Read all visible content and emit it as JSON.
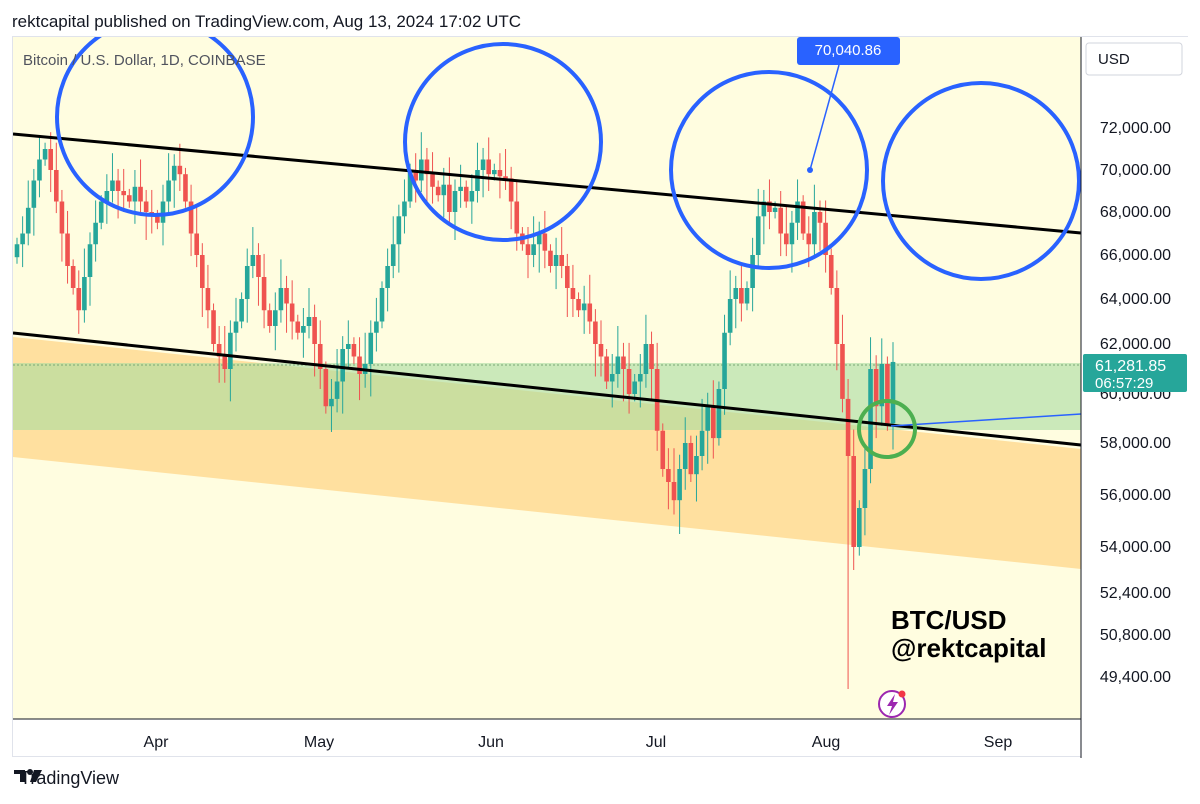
{
  "header": {
    "text": "rektcapital published on TradingView.com, Aug 13, 2024 17:02 UTC"
  },
  "symbol_label": "Bitcoin / U.S. Dollar, 1D, COINBASE",
  "currency_button": "USD",
  "watermark": {
    "line1": "BTC/USD",
    "line2": "@rektcapital"
  },
  "footer": {
    "brand": "TradingView"
  },
  "colors": {
    "up": "#26a69a",
    "down": "#ef5350",
    "circle": "#2962ff",
    "green_circle": "#4caf50",
    "bg": "#fffde0",
    "orange_zone": "#ffd68a",
    "green_zone": "#b9e3b0"
  },
  "chart_data": {
    "type": "candlestick",
    "title": "Bitcoin / U.S. Dollar, 1D, COINBASE",
    "y_ticks": [
      "72,000.00",
      "70,000.00",
      "68,000.00",
      "66,000.00",
      "64,000.00",
      "62,000.00",
      "60,000.00",
      "58,000.00",
      "56,000.00",
      "54,000.00",
      "52,400.00",
      "50,800.00",
      "49,400.00"
    ],
    "x_ticks": [
      "Apr",
      "May",
      "Jun",
      "Jul",
      "Aug",
      "Sep"
    ],
    "last_price": "61,281.85",
    "countdown": "06:57:29",
    "annotation_high": "70,040.86",
    "annotations": [
      "Range highs circled (4)",
      "Green circle at channel bottom retest",
      "Descending channel",
      "Orange support zone",
      "Green zone"
    ],
    "closes_approx": [
      66500,
      67000,
      68200,
      69500,
      70500,
      71000,
      70000,
      68500,
      67000,
      65500,
      64500,
      63500,
      65000,
      66500,
      67500,
      68500,
      69000,
      69500,
      69000,
      68800,
      68500,
      69200,
      68500,
      68000,
      67800,
      67500,
      68500,
      69500,
      70200,
      69800,
      68500,
      67000,
      66000,
      64500,
      63500,
      62000,
      61500,
      61000,
      62500,
      63000,
      64000,
      65500,
      66000,
      65000,
      63500,
      62800,
      63500,
      64500,
      63800,
      63000,
      62500,
      62800,
      63200,
      62000,
      61000,
      59500,
      59800,
      60500,
      61800,
      62000,
      61500,
      60800,
      61200,
      62500,
      63000,
      64500,
      65500,
      66500,
      67800,
      68500,
      70000,
      69500,
      70500,
      69800,
      69200,
      68800,
      69300,
      68000,
      69000,
      69200,
      68500,
      69000,
      70000,
      70500,
      69800,
      70000,
      69700,
      69600,
      68500,
      67000,
      66500,
      66000,
      66500,
      67000,
      66200,
      65500,
      66000,
      65500,
      64500,
      64000,
      63500,
      63800,
      63000,
      62000,
      61500,
      60500,
      60800,
      61500,
      61000,
      60000,
      60500,
      60800,
      62000,
      61000,
      58500,
      57000,
      56500,
      55800,
      57000,
      58000,
      56800,
      57500,
      58500,
      59500,
      58200,
      60200,
      62500,
      64000,
      64500,
      63800,
      64500,
      66000,
      67800,
      68500,
      68000,
      68200,
      67000,
      66500,
      67500,
      68500,
      67000,
      66500,
      68000,
      67500,
      66000,
      64500,
      62000,
      59800,
      57500,
      54000,
      55500,
      57000,
      61000,
      59500,
      61200,
      58800,
      61282
    ],
    "y_range": [
      48500,
      73800
    ]
  }
}
